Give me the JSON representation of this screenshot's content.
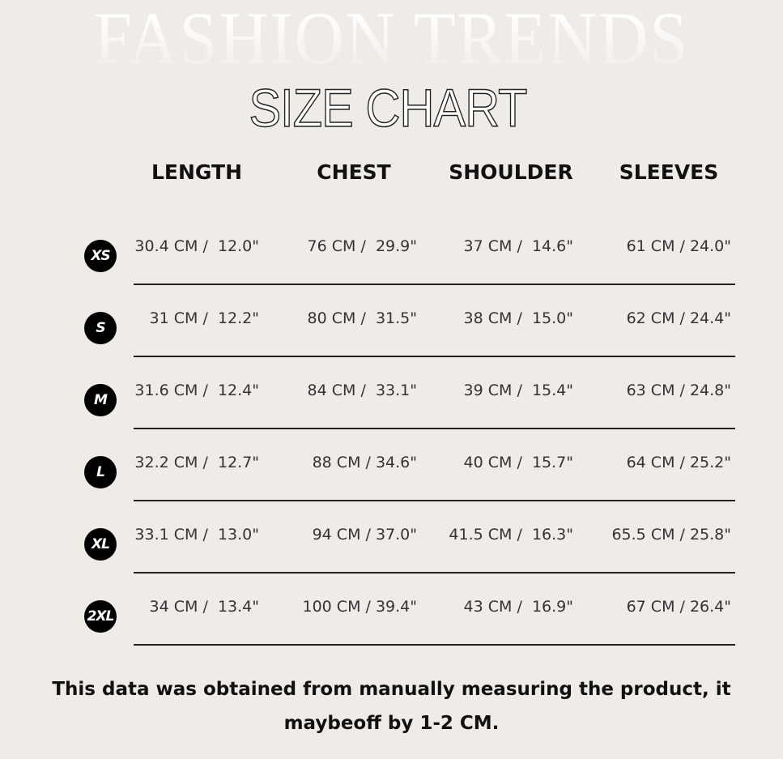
{
  "background_title": "FASHION TRENDS",
  "title": "SIZE CHART",
  "colors": {
    "background": "#efece8",
    "text": "#222222",
    "badge": "#000000"
  },
  "columns": [
    "LENGTH",
    "CHEST",
    "SHOULDER",
    "SLEEVES"
  ],
  "rows": [
    {
      "size": "XS",
      "values": [
        "30.4 CM /  12.0\"",
        "76 CM /  29.9\"",
        "37 CM /  14.6\"",
        "61 CM / 24.0\""
      ]
    },
    {
      "size": "S",
      "values": [
        "31 CM /  12.2\"",
        "80 CM /  31.5\"",
        "38 CM /  15.0\"",
        "62 CM / 24.4\""
      ]
    },
    {
      "size": "M",
      "values": [
        "31.6 CM /  12.4\"",
        "84 CM /  33.1\"",
        "39 CM /  15.4\"",
        "63 CM / 24.8\""
      ]
    },
    {
      "size": "L",
      "values": [
        "32.2 CM /  12.7\"",
        "88 CM / 34.6\"",
        "40 CM /  15.7\"",
        "64 CM / 25.2\""
      ]
    },
    {
      "size": "XL",
      "values": [
        "33.1 CM /  13.0\"",
        "94 CM / 37.0\"",
        "41.5 CM /  16.3\"",
        "65.5 CM / 25.8\""
      ]
    },
    {
      "size": "2XL",
      "values": [
        "34 CM /  13.4\"",
        "100 CM / 39.4\"",
        "43 CM /  16.9\"",
        "67 CM / 26.4\""
      ]
    }
  ],
  "note": "This data was obtained from manually measuring the product, it maybeoff by 1-2 CM."
}
